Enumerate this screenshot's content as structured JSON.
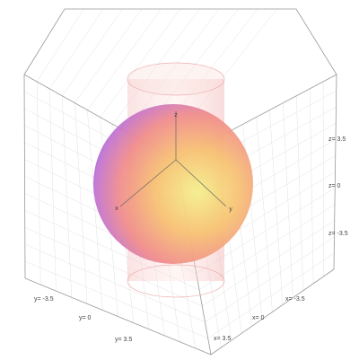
{
  "axes": {
    "x": {
      "label": "x",
      "ticks": [
        "x= -3.5",
        "x= 0",
        "x= 3.5"
      ]
    },
    "y": {
      "label": "y",
      "ticks": [
        "y= -3.5",
        "y= 0",
        "y= 3.5"
      ]
    },
    "z": {
      "label": "z",
      "ticks": [
        "z= 3.5",
        "z= 0",
        "z= -3.5"
      ]
    }
  }
}
